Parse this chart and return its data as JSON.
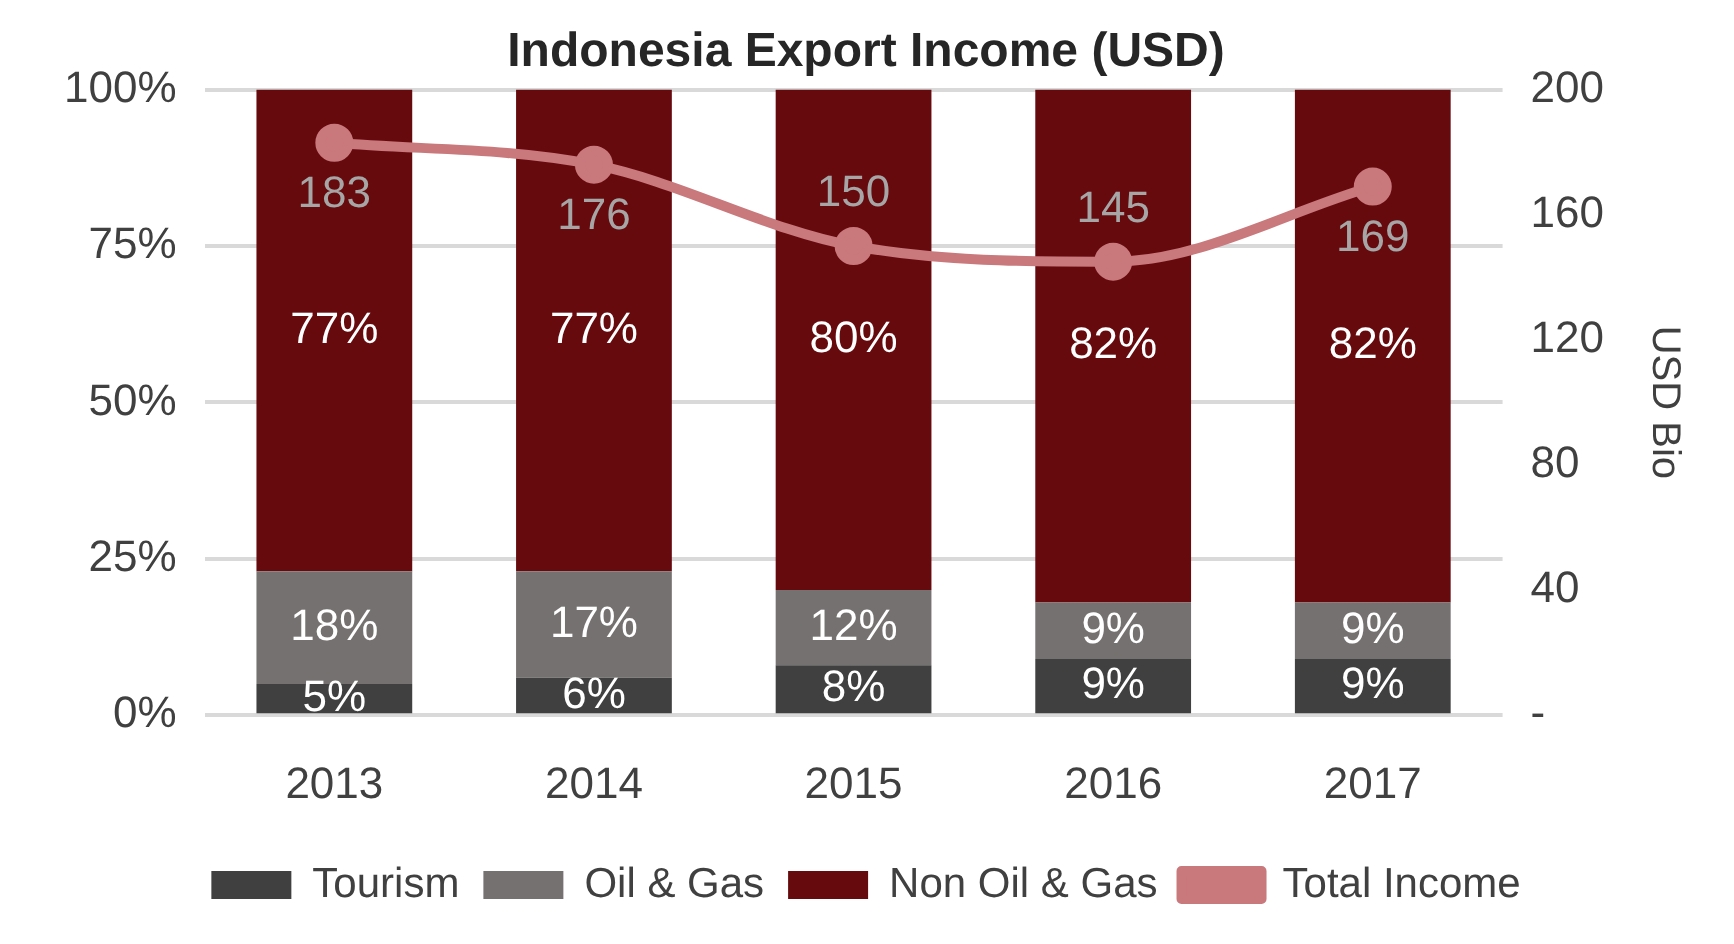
{
  "chart_data": {
    "type": "bar",
    "title": "Indonesia Export Income (USD)",
    "y2label": "USD Bio",
    "categories": [
      "2013",
      "2014",
      "2015",
      "2016",
      "2017"
    ],
    "stacked": true,
    "series": [
      {
        "name": "Tourism",
        "color": "#404040",
        "values": [
          5,
          6,
          8,
          9,
          9
        ],
        "value_labels": [
          "5%",
          "6%",
          "8%",
          "9%",
          "9%"
        ]
      },
      {
        "name": "Oil & Gas",
        "color": "#767171",
        "values": [
          18,
          17,
          12,
          9,
          9
        ],
        "value_labels": [
          "18%",
          "17%",
          "12%",
          "9%",
          "9%"
        ]
      },
      {
        "name": "Non Oil & Gas",
        "color": "#660a0e",
        "values": [
          77,
          77,
          80,
          82,
          82
        ],
        "value_labels": [
          "77%",
          "77%",
          "80%",
          "82%",
          "82%"
        ]
      },
      {
        "name": "Total Income",
        "type": "line",
        "axis": "y2",
        "color": "#c9787c",
        "marker": "circle",
        "values": [
          183,
          176,
          150,
          145,
          169
        ],
        "value_labels": [
          "183",
          "176",
          "150",
          "145",
          "169"
        ]
      }
    ],
    "ylim": [
      0,
      100
    ],
    "yticks": [
      {
        "value": 0,
        "label": "0%"
      },
      {
        "value": 25,
        "label": "25%"
      },
      {
        "value": 50,
        "label": "50%"
      },
      {
        "value": 75,
        "label": "75%"
      },
      {
        "value": 100,
        "label": "100%"
      }
    ],
    "y2lim": [
      0,
      200
    ],
    "y2ticks": [
      {
        "value": 0,
        "label": "-"
      },
      40,
      80,
      120,
      160,
      200
    ],
    "grid": "y",
    "legend": "bottom"
  }
}
